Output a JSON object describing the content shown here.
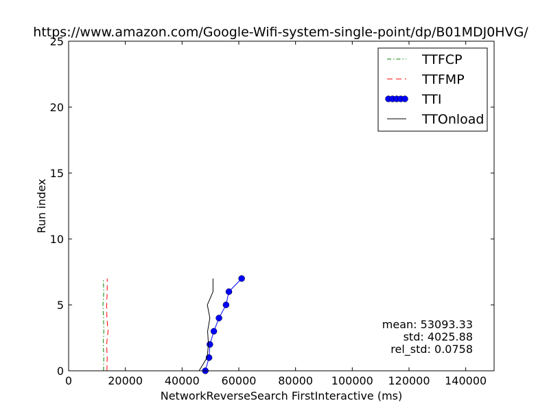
{
  "chart_data": {
    "type": "line",
    "title": "https://www.amazon.com/Google-Wifi-system-single-point/dp/B01MDJ0HVG/",
    "xlabel": "NetworkReverseSearch FirstInteractive (ms)",
    "ylabel": "Run index",
    "xlim": [
      0,
      150000
    ],
    "ylim": [
      0,
      25
    ],
    "xticks": [
      0,
      20000,
      40000,
      60000,
      80000,
      100000,
      120000,
      140000
    ],
    "yticks": [
      0,
      5,
      10,
      15,
      20,
      25
    ],
    "grid": false,
    "legend_position": "top-right",
    "series": [
      {
        "name": "TTFCP",
        "color": "#008000",
        "style": "dashdot",
        "marker": "none",
        "points": [
          [
            12300,
            0
          ],
          [
            12400,
            1
          ],
          [
            12200,
            2
          ],
          [
            12400,
            3
          ],
          [
            12300,
            4
          ],
          [
            12100,
            5
          ],
          [
            12400,
            6
          ],
          [
            12200,
            7
          ]
        ]
      },
      {
        "name": "TTFMP",
        "color": "#ff0000",
        "style": "dashed",
        "marker": "none",
        "points": [
          [
            13500,
            0
          ],
          [
            13600,
            1
          ],
          [
            13400,
            2
          ],
          [
            13900,
            3
          ],
          [
            13500,
            4
          ],
          [
            13400,
            5
          ],
          [
            13600,
            6
          ],
          [
            13600,
            7
          ]
        ]
      },
      {
        "name": "TTI",
        "color": "#0000ff",
        "style": "solid",
        "marker": "circle",
        "points": [
          [
            48200,
            0
          ],
          [
            49500,
            1
          ],
          [
            49800,
            2
          ],
          [
            51200,
            3
          ],
          [
            53000,
            4
          ],
          [
            55500,
            5
          ],
          [
            56500,
            6
          ],
          [
            61000,
            7
          ]
        ]
      },
      {
        "name": "TTOnload",
        "color": "#000000",
        "style": "solid",
        "marker": "none",
        "points": [
          [
            46000,
            0
          ],
          [
            48800,
            1
          ],
          [
            49300,
            2
          ],
          [
            49000,
            3
          ],
          [
            49800,
            4
          ],
          [
            48900,
            5
          ],
          [
            50900,
            6
          ],
          [
            50900,
            7
          ]
        ]
      }
    ],
    "annotations": [
      "mean: 53093.33",
      "std: 4025.88",
      "rel_std: 0.0758"
    ]
  }
}
